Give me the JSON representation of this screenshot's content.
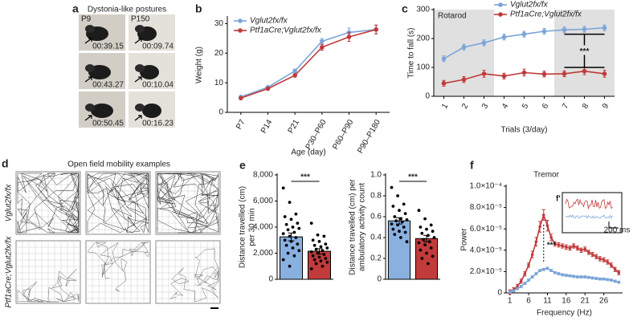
{
  "photos": {
    "label": "a",
    "title": "Dystonia-like postures",
    "columns": [
      "P9",
      "P150"
    ],
    "timestamps": [
      [
        "00:39.15",
        "00:09.74"
      ],
      [
        "00:43.27",
        "00:10.04"
      ],
      [
        "00:50.45",
        "00:16.23"
      ]
    ]
  },
  "open_field": {
    "label": "d",
    "title": "Open field mobility examples",
    "rows": [
      "Vglut2fx/fx",
      "Ptf1aCre;Vglut2fx/fx"
    ]
  },
  "chart_data": [
    {
      "type": "line",
      "label": "b",
      "categories": [
        "P7",
        "P14",
        "P21",
        "P30–P60",
        "P60–P90",
        "P90–P180"
      ],
      "xlabel": "Age (day)",
      "ylabel": "Weight (g)",
      "ylim": [
        0,
        32
      ],
      "yticks": [
        0,
        10,
        20,
        30
      ],
      "legend": "upper left",
      "series": [
        {
          "name": "Vglut2fx/fx",
          "color": "#7ba4d8",
          "values": [
            5.2,
            8.5,
            14,
            24,
            27,
            28
          ],
          "errors": [
            0.4,
            0.5,
            0.6,
            1,
            1.5,
            1.5
          ]
        },
        {
          "name": "Ptf1aCre;Vglut2fx/fx",
          "color": "#c0393b",
          "values": [
            4.8,
            8,
            12.5,
            22,
            25.5,
            28
          ],
          "errors": [
            0.4,
            0.4,
            0.6,
            1,
            1.5,
            1.5
          ]
        }
      ]
    },
    {
      "type": "line",
      "label": "c",
      "title": "Rotarod",
      "x": [
        1,
        2,
        3,
        4,
        5,
        6,
        7,
        8,
        9
      ],
      "xlim": [
        0.5,
        9.5
      ],
      "xticks": [
        1,
        2,
        3,
        4,
        5,
        6,
        7,
        8,
        9
      ],
      "xlabel": "Trials (3/day)",
      "ylabel": "Time to fall (s)",
      "ylim": [
        0,
        300
      ],
      "yticks": [
        0,
        100,
        200,
        300
      ],
      "legend": "upper right",
      "annotation": "***",
      "series": [
        {
          "name": "Vglut2fx/fx",
          "color": "#7ba4d8",
          "values": [
            130,
            170,
            185,
            205,
            215,
            225,
            230,
            232,
            237
          ],
          "errors": [
            10,
            10,
            10,
            10,
            10,
            10,
            10,
            10,
            10
          ]
        },
        {
          "name": "Ptf1aCre;Vglut2fx/fx",
          "color": "#c0393b",
          "values": [
            45,
            58,
            78,
            70,
            82,
            77,
            78,
            87,
            78
          ],
          "errors": [
            10,
            10,
            12,
            10,
            12,
            10,
            10,
            12,
            12
          ]
        }
      ]
    },
    {
      "type": "bar",
      "label": "e",
      "ylabel": [
        "Distance travelled (cm)",
        "per 30 min"
      ],
      "ylim": [
        0,
        8000
      ],
      "yticks": [
        0,
        {
          "value": 2000,
          "label": "2,000"
        },
        {
          "value": 4000,
          "label": "4,000"
        },
        {
          "value": 6000,
          "label": "6,000"
        },
        {
          "value": 8000,
          "label": "8,000"
        }
      ],
      "annotation": "***",
      "colors": [
        "#89b1e0",
        "#c23b3b"
      ],
      "values": [
        3250,
        2150
      ],
      "errors": [
        300,
        200
      ],
      "points": [
        [
          7000,
          5900,
          5000,
          4800,
          4600,
          4300,
          4200,
          4000,
          3900,
          3800,
          3600,
          3500,
          3300,
          3200,
          3000,
          2900,
          2700,
          2600,
          2400,
          2200,
          2000,
          1800,
          1500,
          1000
        ],
        [
          4300,
          3400,
          3300,
          3000,
          2900,
          2700,
          2600,
          2500,
          2400,
          2300,
          2200,
          2100,
          2000,
          1900,
          1800,
          1700,
          1600,
          1500,
          1400,
          1300,
          1200,
          1000,
          800
        ]
      ]
    },
    {
      "type": "bar",
      "ylabel": [
        "Distance travelled (cm) per",
        "ambulatory activity count"
      ],
      "ylim": [
        0,
        1
      ],
      "yticks": [
        0,
        0.2,
        0.4,
        0.6,
        0.8,
        {
          "value": 1,
          "label": "1.0"
        }
      ],
      "annotation": "***",
      "colors": [
        "#89b1e0",
        "#c23b3b"
      ],
      "values": [
        0.56,
        0.39
      ],
      "errors": [
        0.03,
        0.03
      ],
      "points": [
        [
          0.88,
          0.8,
          0.72,
          0.7,
          0.66,
          0.63,
          0.6,
          0.58,
          0.57,
          0.56,
          0.55,
          0.53,
          0.52,
          0.5,
          0.48,
          0.46,
          0.45,
          0.43,
          0.4,
          0.36
        ],
        [
          0.66,
          0.58,
          0.52,
          0.5,
          0.48,
          0.46,
          0.44,
          0.42,
          0.4,
          0.38,
          0.36,
          0.35,
          0.33,
          0.3,
          0.28,
          0.25,
          0.22,
          0.2,
          0.15
        ]
      ]
    },
    {
      "type": "line",
      "label": "f",
      "title": "Tremor",
      "xlabel": "Frequency (Hz)",
      "ylabel": "Power",
      "annotation": "***",
      "inset_label": "f'",
      "inset_scale": "200 ms",
      "x": [
        1,
        2,
        3,
        4,
        5,
        6,
        7,
        8,
        9,
        10,
        11,
        12,
        13,
        14,
        15,
        16,
        17,
        18,
        19,
        20,
        21,
        22,
        23,
        24,
        25,
        26,
        27,
        28,
        29,
        30
      ],
      "xlim": [
        0,
        31
      ],
      "xticks": [
        1,
        6,
        11,
        16,
        21,
        26
      ],
      "ylim": [
        0,
        0.0001
      ],
      "yticks": [
        0,
        {
          "value": 2e-05,
          "label": "2.0×10⁻⁵"
        },
        {
          "value": 4e-05,
          "label": "4.0×10⁻⁵"
        },
        {
          "value": 6e-05,
          "label": "6.0×10⁻⁵"
        },
        {
          "value": 8e-05,
          "label": "8.0×10⁻⁵"
        },
        {
          "value": 0.0001,
          "label": "1.0×10⁻⁴"
        }
      ],
      "series": [
        {
          "name": "Ptf1aCre;Vglut2fx/fx",
          "color": "#c0393b",
          "values": [
            1e-06,
            3e-06,
            6e-06,
            1.1e-05,
            1.8e-05,
            2.6e-05,
            3.6e-05,
            4.8e-05,
            6.2e-05,
            7.3e-05,
            6.3e-05,
            5.2e-05,
            4.6e-05,
            4.5e-05,
            4.4e-05,
            4.3e-05,
            4.2e-05,
            4.4e-05,
            4.2e-05,
            4e-05,
            4.1e-05,
            3.8e-05,
            3.6e-05,
            3.4e-05,
            3.2e-05,
            3.1e-05,
            2.9e-05,
            2.6e-05,
            2.2e-05,
            1.9e-05
          ],
          "errors": [
            2e-06,
            2e-06,
            2e-06,
            2e-06,
            2e-06,
            2e-06,
            3e-06,
            4e-06,
            5e-06,
            5e-06,
            5e-06,
            3e-06,
            2e-06,
            2e-06,
            2e-06,
            2e-06,
            2e-06,
            2e-06,
            2e-06,
            2e-06,
            2e-06,
            2e-06,
            2e-06,
            2e-06,
            2e-06,
            2e-06,
            2e-06,
            2e-06,
            2e-06,
            2e-06
          ]
        },
        {
          "name": "Vglut2fx/fx",
          "color": "#7ba4d8",
          "values": [
            1e-06,
            2e-06,
            4e-06,
            6e-06,
            9e-06,
            1.2e-05,
            1.5e-05,
            1.8e-05,
            2.1e-05,
            2.2e-05,
            2.3e-05,
            2.1e-05,
            1.9e-05,
            1.8e-05,
            1.7e-05,
            1.65e-05,
            1.6e-05,
            1.55e-05,
            1.5e-05,
            1.5e-05,
            1.5e-05,
            1.45e-05,
            1.4e-05,
            1.35e-05,
            1.3e-05,
            1.3e-05,
            1.25e-05,
            1.2e-05,
            1.1e-05,
            1e-05
          ],
          "errors": [
            1e-06,
            1e-06,
            1e-06,
            1e-06,
            1e-06,
            1e-06,
            1e-06,
            1e-06,
            1e-06,
            1e-06,
            1e-06,
            1e-06,
            1e-06,
            1e-06,
            1e-06,
            1e-06,
            1e-06,
            1e-06,
            1e-06,
            1e-06,
            1e-06,
            1e-06,
            1e-06,
            1e-06,
            1e-06,
            1e-06,
            1e-06,
            1e-06,
            1e-06,
            1e-06
          ]
        }
      ]
    }
  ]
}
